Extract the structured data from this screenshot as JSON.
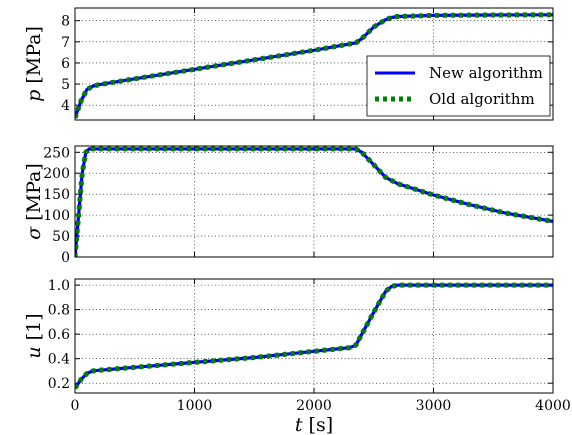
{
  "chart_data": [
    {
      "type": "line",
      "name": "p",
      "ylabel": "p [MPa]",
      "ylabel_symbol": "p",
      "ylabel_unit": "[MPa]",
      "xlim": [
        0,
        4000
      ],
      "ylim": [
        3.3,
        8.6
      ],
      "yticks": [
        4,
        5,
        6,
        7,
        8
      ],
      "grid": true,
      "legend": "center-right",
      "series": [
        {
          "name": "New algorithm",
          "color": "#0000ff",
          "x": [
            0,
            50,
            100,
            150,
            200,
            500,
            1000,
            1500,
            2000,
            2300,
            2350,
            2400,
            2500,
            2600,
            2650,
            2700,
            3000,
            3500,
            4000
          ],
          "y": [
            3.4,
            4.2,
            4.75,
            4.9,
            4.97,
            5.25,
            5.7,
            6.15,
            6.6,
            6.9,
            6.95,
            7.15,
            7.7,
            8.05,
            8.15,
            8.2,
            8.25,
            8.27,
            8.28
          ]
        },
        {
          "name": "Old algorithm",
          "color": "#008000",
          "x": [
            0,
            50,
            100,
            150,
            200,
            500,
            1000,
            1500,
            2000,
            2300,
            2350,
            2400,
            2500,
            2600,
            2650,
            2700,
            3000,
            3500,
            4000
          ],
          "y": [
            3.4,
            4.2,
            4.75,
            4.9,
            4.97,
            5.25,
            5.7,
            6.15,
            6.6,
            6.9,
            6.95,
            7.15,
            7.7,
            8.05,
            8.15,
            8.2,
            8.25,
            8.27,
            8.28
          ]
        }
      ]
    },
    {
      "type": "line",
      "name": "sigma",
      "ylabel": "σ [MPa]",
      "ylabel_symbol": "σ",
      "ylabel_unit": "[MPa]",
      "xlim": [
        0,
        4000
      ],
      "ylim": [
        0,
        265
      ],
      "yticks": [
        0,
        50,
        100,
        150,
        200,
        250
      ],
      "grid": true,
      "series": [
        {
          "name": "New algorithm",
          "color": "#0000ff",
          "x": [
            0,
            30,
            60,
            90,
            120,
            500,
            1000,
            1500,
            2000,
            2350,
            2400,
            2500,
            2600,
            2700,
            3000,
            3300,
            3600,
            4000
          ],
          "y": [
            0,
            100,
            200,
            250,
            258,
            258,
            258,
            258,
            258,
            258,
            250,
            220,
            190,
            175,
            148,
            125,
            105,
            85
          ]
        },
        {
          "name": "Old algorithm",
          "color": "#008000",
          "x": [
            0,
            30,
            60,
            90,
            120,
            500,
            1000,
            1500,
            2000,
            2350,
            2400,
            2500,
            2600,
            2700,
            3000,
            3300,
            3600,
            4000
          ],
          "y": [
            0,
            100,
            200,
            250,
            258,
            258,
            258,
            258,
            258,
            258,
            250,
            220,
            190,
            175,
            148,
            125,
            105,
            85
          ]
        }
      ]
    },
    {
      "type": "line",
      "name": "u",
      "ylabel": "u [1]",
      "ylabel_symbol": "u",
      "ylabel_unit": "[1]",
      "xlabel": "t [s]",
      "xlabel_symbol": "t",
      "xlabel_unit": "[s]",
      "xlim": [
        0,
        4000
      ],
      "ylim": [
        0.12,
        1.05
      ],
      "yticks": [
        0.2,
        0.4,
        0.6,
        0.8,
        1.0
      ],
      "ytick_labels": [
        "0.2",
        "0.4",
        "0.6",
        "0.8",
        "1.0"
      ],
      "xticks": [
        0,
        1000,
        2000,
        3000,
        4000
      ],
      "grid": true,
      "series": [
        {
          "name": "New algorithm",
          "color": "#0000ff",
          "x": [
            0,
            50,
            100,
            150,
            200,
            500,
            1000,
            1500,
            2000,
            2300,
            2350,
            2400,
            2500,
            2600,
            2650,
            2700,
            3000,
            3500,
            4000
          ],
          "y": [
            0.16,
            0.23,
            0.28,
            0.3,
            0.305,
            0.33,
            0.37,
            0.41,
            0.46,
            0.49,
            0.51,
            0.6,
            0.78,
            0.95,
            0.99,
            1.0,
            1.0,
            1.0,
            1.0
          ]
        },
        {
          "name": "Old algorithm",
          "color": "#008000",
          "x": [
            0,
            50,
            100,
            150,
            200,
            500,
            1000,
            1500,
            2000,
            2300,
            2350,
            2400,
            2500,
            2600,
            2650,
            2700,
            3000,
            3500,
            4000
          ],
          "y": [
            0.16,
            0.23,
            0.28,
            0.3,
            0.305,
            0.33,
            0.37,
            0.41,
            0.46,
            0.49,
            0.51,
            0.6,
            0.78,
            0.95,
            0.99,
            1.0,
            1.0,
            1.0,
            1.0
          ]
        }
      ]
    }
  ],
  "legend": {
    "entries": [
      {
        "label": "New algorithm",
        "color": "#0000ff",
        "style": "solid"
      },
      {
        "label": "Old algorithm",
        "color": "#008000",
        "style": "dashed"
      }
    ]
  }
}
